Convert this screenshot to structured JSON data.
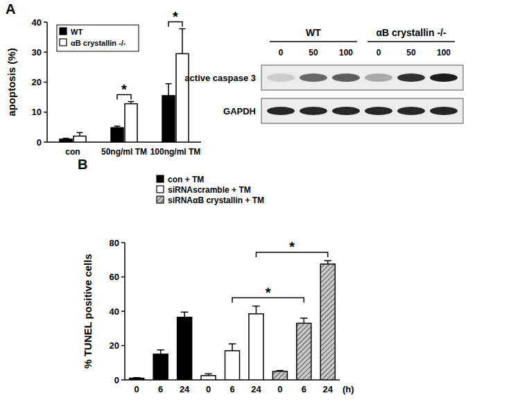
{
  "panels": [
    "A",
    "B"
  ],
  "chart_data": [
    {
      "type": "bar",
      "ylabel": "apoptosis (%)",
      "categories": [
        "con",
        "50ng/ml TM",
        "100ng/ml TM"
      ],
      "series": [
        {
          "name": "WT",
          "color": "#000000",
          "values": [
            1,
            4.8,
            15.5
          ],
          "errors": [
            0.3,
            0.5,
            4
          ]
        },
        {
          "name": "αB crystallin -/-",
          "color": "#ffffff",
          "values": [
            2,
            12.8,
            29.5
          ],
          "errors": [
            1.2,
            0.7,
            8.3
          ]
        }
      ],
      "ylim": [
        0,
        40
      ],
      "yticks": [
        0,
        10,
        20,
        30,
        40
      ],
      "legend": "upper-left",
      "annotations": [
        {
          "text": "*",
          "category": 1
        },
        {
          "text": "*",
          "category": 2
        }
      ]
    },
    {
      "type": "bar",
      "ylabel": "% TUNEL positive cells",
      "xlabel": "(h)",
      "categories": [
        "0",
        "6",
        "24",
        "0",
        "6",
        "24",
        "0",
        "6",
        "24"
      ],
      "series": [
        {
          "name": "con + TM",
          "color": "#000000",
          "values": [
            1,
            15,
            36.5,
            null,
            null,
            null,
            null,
            null,
            null
          ],
          "errors": [
            0.3,
            2.5,
            3,
            null,
            null,
            null,
            null,
            null,
            null
          ]
        },
        {
          "name": "siRNAscramble + TM",
          "color": "#ffffff",
          "values": [
            null,
            null,
            null,
            2.5,
            17,
            38.5,
            null,
            null,
            null
          ],
          "errors": [
            null,
            null,
            null,
            1,
            4,
            4.5,
            null,
            null,
            null
          ]
        },
        {
          "name": "siRNAαB crystallin + TM",
          "color": "#a0a0a0",
          "line_style": "hatched",
          "values": [
            null,
            null,
            null,
            null,
            null,
            null,
            5,
            33,
            67.5
          ],
          "errors": [
            null,
            null,
            null,
            null,
            null,
            null,
            0.5,
            3,
            2
          ]
        }
      ],
      "ylim": [
        0,
        80
      ],
      "yticks": [
        0,
        20,
        40,
        60,
        80
      ],
      "legend": "upper-left",
      "annotations": [
        {
          "text": "*",
          "from": 4,
          "to": 7
        },
        {
          "text": "*",
          "from": 5,
          "to": 8
        }
      ]
    }
  ],
  "blot": {
    "groups": [
      {
        "label": "WT",
        "lanes": [
          0,
          50,
          100
        ]
      },
      {
        "label": "αB crystallin -/-",
        "lanes": [
          0,
          50,
          100
        ]
      }
    ],
    "rows": [
      {
        "label": "active caspase 3",
        "intensities": [
          0.15,
          0.6,
          0.65,
          0.3,
          0.85,
          0.95
        ]
      },
      {
        "label": "GAPDH",
        "intensities": [
          0.9,
          0.9,
          0.9,
          0.9,
          0.9,
          0.9
        ]
      }
    ]
  }
}
